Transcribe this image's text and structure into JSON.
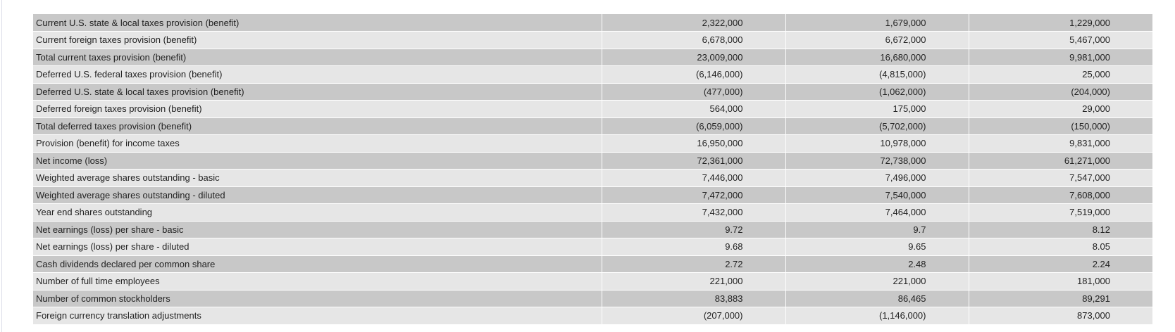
{
  "table": {
    "rows": [
      {
        "label": "Current U.S. state & local taxes provision (benefit)",
        "values": [
          "2,322,000",
          "1,679,000",
          "1,229,000"
        ]
      },
      {
        "label": "Current foreign taxes provision (benefit)",
        "values": [
          "6,678,000",
          "6,672,000",
          "5,467,000"
        ]
      },
      {
        "label": "Total current taxes provision (benefit)",
        "values": [
          "23,009,000",
          "16,680,000",
          "9,981,000"
        ]
      },
      {
        "label": "Deferred U.S. federal taxes provision (benefit)",
        "values": [
          "(6,146,000)",
          "(4,815,000)",
          "25,000"
        ]
      },
      {
        "label": "Deferred U.S. state & local taxes provision (benefit)",
        "values": [
          "(477,000)",
          "(1,062,000)",
          "(204,000)"
        ]
      },
      {
        "label": "Deferred foreign taxes provision (benefit)",
        "values": [
          "564,000",
          "175,000",
          "29,000"
        ]
      },
      {
        "label": "Total deferred taxes provision (benefit)",
        "values": [
          "(6,059,000)",
          "(5,702,000)",
          "(150,000)"
        ]
      },
      {
        "label": "Provision (benefit) for income taxes",
        "values": [
          "16,950,000",
          "10,978,000",
          "9,831,000"
        ]
      },
      {
        "label": "Net income (loss)",
        "values": [
          "72,361,000",
          "72,738,000",
          "61,271,000"
        ]
      },
      {
        "label": "Weighted average shares outstanding - basic",
        "values": [
          "7,446,000",
          "7,496,000",
          "7,547,000"
        ]
      },
      {
        "label": "Weighted average shares outstanding - diluted",
        "values": [
          "7,472,000",
          "7,540,000",
          "7,608,000"
        ]
      },
      {
        "label": "Year end shares outstanding",
        "values": [
          "7,432,000",
          "7,464,000",
          "7,519,000"
        ]
      },
      {
        "label": "Net earnings (loss) per share - basic",
        "values": [
          "9.72",
          "9.7",
          "8.12"
        ]
      },
      {
        "label": "Net earnings (loss) per share - diluted",
        "values": [
          "9.68",
          "9.65",
          "8.05"
        ]
      },
      {
        "label": "Cash dividends declared per common share",
        "values": [
          "2.72",
          "2.48",
          "2.24"
        ]
      },
      {
        "label": "Number of full time employees",
        "values": [
          "221,000",
          "221,000",
          "181,000"
        ]
      },
      {
        "label": "Number of common stockholders",
        "values": [
          "83,883",
          "86,465",
          "89,291"
        ]
      },
      {
        "label": "Foreign currency translation adjustments",
        "values": [
          "(207,000)",
          "(1,146,000)",
          "873,000"
        ]
      }
    ]
  },
  "colors": {
    "row_dark": "#c8c8c8",
    "row_light": "#e6e6e6",
    "text": "#222222"
  }
}
